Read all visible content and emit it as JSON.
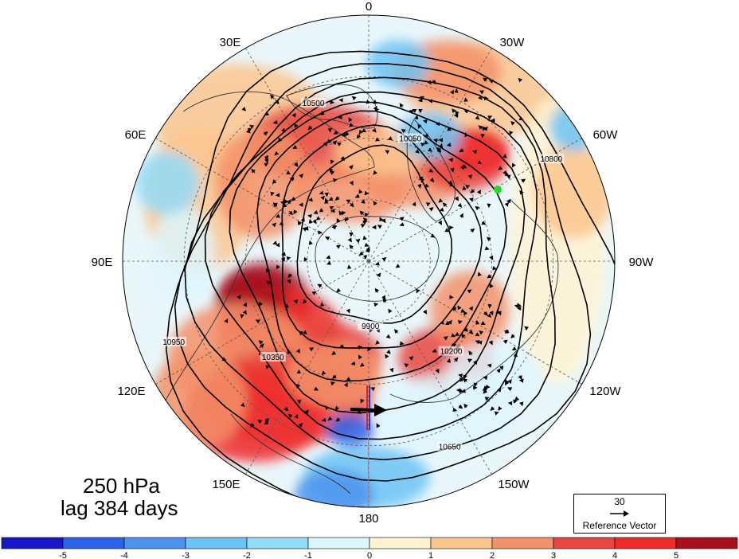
{
  "title": {
    "level": "250 hPa",
    "lag": "lag 384 days"
  },
  "longitude_labels": [
    "0",
    "30W",
    "60W",
    "90W",
    "120W",
    "150W",
    "180",
    "150E",
    "120E",
    "90E",
    "60E",
    "30E"
  ],
  "contour_levels": [
    "9900",
    "10050",
    "10200",
    "10350",
    "10500",
    "10650",
    "10800",
    "10950"
  ],
  "reference_vector": {
    "magnitude": "30",
    "label": "Reference Vector"
  },
  "colorbar": {
    "ticks": [
      "-5",
      "-4",
      "-3",
      "-2",
      "-1",
      "0",
      "1",
      "2",
      "3",
      "4",
      "5"
    ],
    "colors": [
      "#1a17c8",
      "#2e62e8",
      "#4b93ee",
      "#6dc3f5",
      "#93dcf8",
      "#ddf6fb",
      "#fff3d2",
      "#fbc68e",
      "#f3926a",
      "#e8463e",
      "#ef2a2a",
      "#a8101e"
    ]
  },
  "marker": {
    "color": "#22dd22"
  },
  "colors": {
    "land_outline": "#333333",
    "background_field": "#e9f7fb"
  }
}
